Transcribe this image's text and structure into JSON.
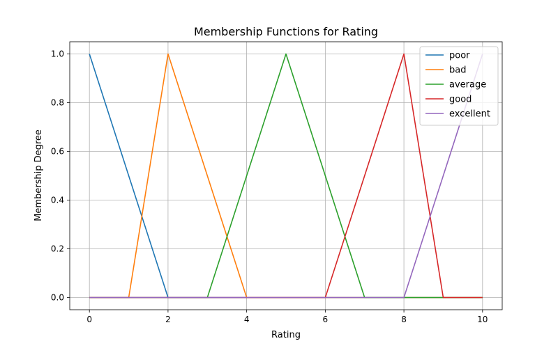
{
  "chart_data": {
    "type": "line",
    "title": "Membership Functions for Rating",
    "xlabel": "Rating",
    "ylabel": "Membership Degree",
    "xlim": [
      -0.5,
      10.5
    ],
    "ylim": [
      -0.05,
      1.05
    ],
    "xticks": [
      0,
      2,
      4,
      6,
      8,
      10
    ],
    "yticks": [
      0.0,
      0.2,
      0.4,
      0.6,
      0.8,
      1.0
    ],
    "xtick_labels": [
      "0",
      "2",
      "4",
      "6",
      "8",
      "10"
    ],
    "ytick_labels": [
      "0.0",
      "0.2",
      "0.4",
      "0.6",
      "0.8",
      "1.0"
    ],
    "grid": true,
    "legend_position": "top-right",
    "series": [
      {
        "name": "poor",
        "color": "#1f77b4",
        "x": [
          0,
          1,
          2,
          3,
          4,
          5,
          6,
          7,
          8,
          9,
          10
        ],
        "y": [
          1.0,
          0.5,
          0.0,
          0.0,
          0.0,
          0.0,
          0.0,
          0.0,
          0.0,
          0.0,
          0.0
        ]
      },
      {
        "name": "bad",
        "color": "#ff7f0e",
        "x": [
          0,
          1,
          2,
          3,
          4,
          5,
          6,
          7,
          8,
          9,
          10
        ],
        "y": [
          0.0,
          0.0,
          1.0,
          0.5,
          0.0,
          0.0,
          0.0,
          0.0,
          0.0,
          0.0,
          0.0
        ]
      },
      {
        "name": "average",
        "color": "#2ca02c",
        "x": [
          0,
          1,
          2,
          3,
          4,
          5,
          6,
          7,
          8,
          9,
          10
        ],
        "y": [
          0.0,
          0.0,
          0.0,
          0.0,
          0.5,
          1.0,
          0.5,
          0.0,
          0.0,
          0.0,
          0.0
        ]
      },
      {
        "name": "good",
        "color": "#d62728",
        "x": [
          0,
          1,
          2,
          3,
          4,
          5,
          6,
          7,
          8,
          9,
          10
        ],
        "y": [
          0.0,
          0.0,
          0.0,
          0.0,
          0.0,
          0.0,
          0.0,
          0.5,
          1.0,
          0.0,
          0.0
        ]
      },
      {
        "name": "excellent",
        "color": "#9467bd",
        "x": [
          0,
          1,
          2,
          3,
          4,
          5,
          6,
          7,
          8,
          9,
          10
        ],
        "y": [
          0.0,
          0.0,
          0.0,
          0.0,
          0.0,
          0.0,
          0.0,
          0.0,
          0.0,
          0.5,
          1.0
        ]
      }
    ]
  }
}
